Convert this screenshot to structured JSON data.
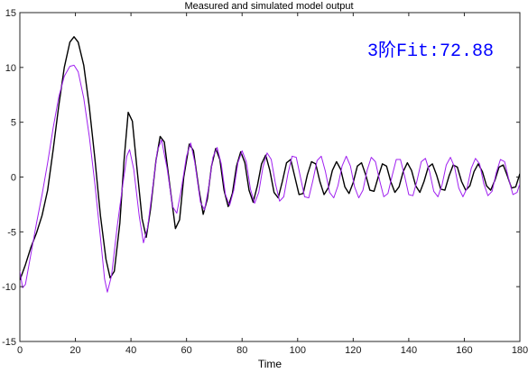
{
  "chart_data": {
    "type": "line",
    "title": "Measured and simulated model output",
    "xlabel": "Time",
    "ylabel": "",
    "xlim": [
      0,
      180
    ],
    "ylim": [
      -15,
      15
    ],
    "x_ticks": [
      0,
      20,
      40,
      60,
      80,
      100,
      120,
      140,
      160,
      180
    ],
    "y_ticks": [
      -15,
      -10,
      -5,
      0,
      5,
      10,
      15
    ],
    "grid": false,
    "annotation": {
      "text": "3阶Fit:72.88",
      "color": "#0000ff"
    },
    "series": [
      {
        "color": "#000000",
        "points": [
          [
            0,
            -9.4
          ],
          [
            2,
            -8.0
          ],
          [
            4,
            -6.4
          ],
          [
            6,
            -5.1
          ],
          [
            8,
            -3.5
          ],
          [
            10,
            -1.2
          ],
          [
            12,
            2.5
          ],
          [
            14,
            6.5
          ],
          [
            16,
            10.0
          ],
          [
            18,
            12.3
          ],
          [
            19.5,
            12.8
          ],
          [
            21,
            12.3
          ],
          [
            23,
            10.2
          ],
          [
            25,
            6.4
          ],
          [
            27,
            1.7
          ],
          [
            29,
            -3.5
          ],
          [
            31,
            -7.5
          ],
          [
            32.5,
            -9.2
          ],
          [
            34,
            -8.6
          ],
          [
            36,
            -4.2
          ],
          [
            37.5,
            1.5
          ],
          [
            39,
            5.9
          ],
          [
            40.5,
            5.1
          ],
          [
            42,
            1.2
          ],
          [
            44,
            -3.8
          ],
          [
            45.5,
            -5.5
          ],
          [
            47,
            -3.0
          ],
          [
            49,
            1.5
          ],
          [
            50.5,
            3.7
          ],
          [
            52,
            3.2
          ],
          [
            54,
            -0.8
          ],
          [
            56,
            -4.7
          ],
          [
            57.5,
            -3.9
          ],
          [
            59,
            0.0
          ],
          [
            61,
            3.0
          ],
          [
            62.5,
            2.4
          ],
          [
            64.5,
            -1.2
          ],
          [
            66,
            -3.4
          ],
          [
            67.5,
            -2.0
          ],
          [
            69,
            1.0
          ],
          [
            70.5,
            2.6
          ],
          [
            72,
            1.6
          ],
          [
            73.5,
            -1.2
          ],
          [
            75,
            -2.7
          ],
          [
            76.5,
            -1.5
          ],
          [
            78,
            1.0
          ],
          [
            79.5,
            2.3
          ],
          [
            81,
            1.3
          ],
          [
            82.5,
            -1.2
          ],
          [
            84,
            -2.3
          ],
          [
            85.5,
            -0.8
          ],
          [
            87,
            1.2
          ],
          [
            88.5,
            2.0
          ],
          [
            90,
            0.6
          ],
          [
            91.5,
            -1.4
          ],
          [
            93,
            -1.9
          ],
          [
            94.5,
            -0.4
          ],
          [
            96,
            1.3
          ],
          [
            97.5,
            1.6
          ],
          [
            99,
            0.0
          ],
          [
            100.5,
            -1.6
          ],
          [
            102,
            -1.5
          ],
          [
            103.5,
            0.2
          ],
          [
            105,
            1.4
          ],
          [
            106.5,
            1.2
          ],
          [
            108,
            -0.4
          ],
          [
            109.5,
            -1.6
          ],
          [
            111,
            -1.0
          ],
          [
            112.5,
            0.6
          ],
          [
            114,
            1.4
          ],
          [
            115.5,
            0.7
          ],
          [
            117,
            -0.9
          ],
          [
            118.5,
            -1.5
          ],
          [
            120,
            -0.5
          ],
          [
            121.5,
            1.0
          ],
          [
            123,
            1.3
          ],
          [
            124.5,
            0.2
          ],
          [
            126,
            -1.2
          ],
          [
            127.5,
            -1.3
          ],
          [
            129,
            0.0
          ],
          [
            130.5,
            1.2
          ],
          [
            132,
            1.0
          ],
          [
            133.5,
            -0.4
          ],
          [
            135,
            -1.4
          ],
          [
            136.5,
            -0.9
          ],
          [
            138,
            0.5
          ],
          [
            139.5,
            1.3
          ],
          [
            141,
            0.6
          ],
          [
            142.5,
            -0.8
          ],
          [
            144,
            -1.4
          ],
          [
            145.5,
            -0.4
          ],
          [
            147,
            0.9
          ],
          [
            148.5,
            1.2
          ],
          [
            150,
            0.2
          ],
          [
            151.5,
            -1.1
          ],
          [
            153,
            -1.2
          ],
          [
            154.5,
            0.1
          ],
          [
            156,
            1.1
          ],
          [
            157.5,
            0.9
          ],
          [
            159,
            -0.4
          ],
          [
            160.5,
            -1.2
          ],
          [
            162,
            -0.8
          ],
          [
            163.5,
            0.5
          ],
          [
            165,
            1.2
          ],
          [
            166.5,
            0.5
          ],
          [
            168,
            -0.8
          ],
          [
            169.5,
            -1.2
          ],
          [
            171,
            -0.3
          ],
          [
            172.5,
            0.9
          ],
          [
            174,
            1.1
          ],
          [
            175.5,
            0.1
          ],
          [
            177,
            -1.0
          ],
          [
            178.5,
            -0.9
          ],
          [
            180,
            0.3
          ]
        ]
      },
      {
        "color": "#a020f0",
        "points": [
          [
            0,
            -8.6
          ],
          [
            1,
            -10.1
          ],
          [
            2,
            -9.8
          ],
          [
            4,
            -7.0
          ],
          [
            6,
            -4.2
          ],
          [
            8,
            -1.6
          ],
          [
            10,
            1.3
          ],
          [
            12,
            4.5
          ],
          [
            14,
            7.3
          ],
          [
            16,
            9.2
          ],
          [
            18,
            10.1
          ],
          [
            19.5,
            10.2
          ],
          [
            21,
            9.6
          ],
          [
            23,
            7.2
          ],
          [
            25,
            3.7
          ],
          [
            27,
            -0.6
          ],
          [
            29,
            -5.5
          ],
          [
            30.5,
            -9.3
          ],
          [
            31.5,
            -10.5
          ],
          [
            33,
            -9.0
          ],
          [
            35,
            -4.6
          ],
          [
            37,
            -0.8
          ],
          [
            38.5,
            1.9
          ],
          [
            39.5,
            2.5
          ],
          [
            41,
            0.7
          ],
          [
            43,
            -3.6
          ],
          [
            44.5,
            -6.0
          ],
          [
            46,
            -4.6
          ],
          [
            48,
            -0.6
          ],
          [
            49.5,
            2.4
          ],
          [
            51,
            3.4
          ],
          [
            53,
            0.8
          ],
          [
            55,
            -2.7
          ],
          [
            56.5,
            -3.3
          ],
          [
            58,
            -1.3
          ],
          [
            60,
            1.9
          ],
          [
            61.5,
            3.1
          ],
          [
            63,
            1.3
          ],
          [
            65,
            -2.3
          ],
          [
            66.5,
            -3.0
          ],
          [
            68,
            -0.9
          ],
          [
            69.5,
            1.8
          ],
          [
            71,
            2.7
          ],
          [
            72.5,
            1.2
          ],
          [
            74,
            -1.6
          ],
          [
            75.5,
            -2.6
          ],
          [
            77,
            -1.2
          ],
          [
            78.5,
            1.3
          ],
          [
            80,
            2.4
          ],
          [
            81.5,
            1.4
          ],
          [
            83,
            -1.1
          ],
          [
            84.5,
            -2.4
          ],
          [
            86,
            -1.4
          ],
          [
            87.5,
            0.9
          ],
          [
            89,
            2.2
          ],
          [
            90.5,
            1.6
          ],
          [
            92,
            -0.6
          ],
          [
            93.5,
            -2.2
          ],
          [
            95,
            -1.8
          ],
          [
            96.5,
            0.3
          ],
          [
            98,
            1.9
          ],
          [
            99.5,
            1.8
          ],
          [
            101,
            0.0
          ],
          [
            102.5,
            -1.8
          ],
          [
            104,
            -1.9
          ],
          [
            105.5,
            -0.3
          ],
          [
            107,
            1.5
          ],
          [
            108.5,
            1.9
          ],
          [
            110,
            0.5
          ],
          [
            111.5,
            -1.4
          ],
          [
            113,
            -1.9
          ],
          [
            114.5,
            -0.8
          ],
          [
            116,
            1.0
          ],
          [
            117.5,
            1.9
          ],
          [
            119,
            1.0
          ],
          [
            120.5,
            -0.9
          ],
          [
            122,
            -1.9
          ],
          [
            123.5,
            -1.2
          ],
          [
            125,
            0.6
          ],
          [
            126.5,
            1.8
          ],
          [
            128,
            1.4
          ],
          [
            129.5,
            -0.3
          ],
          [
            131,
            -1.8
          ],
          [
            132.5,
            -1.5
          ],
          [
            134,
            0.1
          ],
          [
            135.5,
            1.6
          ],
          [
            137,
            1.6
          ],
          [
            138.5,
            0.1
          ],
          [
            140,
            -1.6
          ],
          [
            141.5,
            -1.7
          ],
          [
            143,
            -0.3
          ],
          [
            144.5,
            1.4
          ],
          [
            146,
            1.7
          ],
          [
            147.5,
            0.5
          ],
          [
            149,
            -1.3
          ],
          [
            150.5,
            -1.8
          ],
          [
            152,
            -0.7
          ],
          [
            153.5,
            1.1
          ],
          [
            155,
            1.8
          ],
          [
            156.5,
            0.9
          ],
          [
            158,
            -1.0
          ],
          [
            159.5,
            -1.8
          ],
          [
            161,
            -1.0
          ],
          [
            162.5,
            0.8
          ],
          [
            164,
            1.7
          ],
          [
            165.5,
            1.2
          ],
          [
            167,
            -0.6
          ],
          [
            168.5,
            -1.7
          ],
          [
            170,
            -1.3
          ],
          [
            171.5,
            0.4
          ],
          [
            173,
            1.6
          ],
          [
            174.5,
            1.4
          ],
          [
            176,
            -0.2
          ],
          [
            177.5,
            -1.6
          ],
          [
            179,
            -1.4
          ],
          [
            180,
            -0.6
          ]
        ]
      }
    ]
  }
}
